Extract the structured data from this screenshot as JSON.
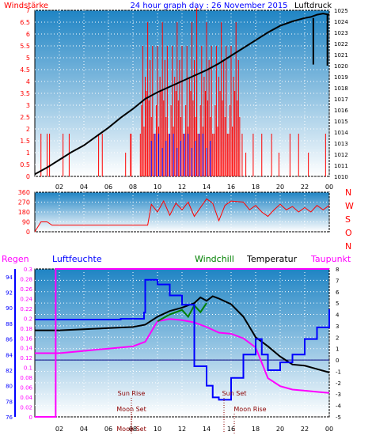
{
  "colors": {
    "bg_top": "#1f84c4",
    "bg_bottom": "#ffffff",
    "red": "#ff0000",
    "blue": "#0000ff",
    "black": "#000000",
    "magenta": "#ff00ff",
    "green": "#008000",
    "darkred": "#8b0000"
  },
  "chart_data": [
    {
      "type": "bar",
      "title": "24 hour graph day : 26 November 2015",
      "left_label": "Windstärke",
      "right_label": "Luftdruck",
      "y_ticks": [
        "0",
        "0.5",
        "1",
        "1.5",
        "2",
        "2.5",
        "3",
        "3.5",
        "4",
        "4.5",
        "5",
        "5.5",
        "6",
        "6.5",
        "7"
      ],
      "y_right_ticks": [
        "1010",
        "1011",
        "1012",
        "1013",
        "1014",
        "1015",
        "1016",
        "1017",
        "1018",
        "1019",
        "1020",
        "1021",
        "1022",
        "1023",
        "1024",
        "1025"
      ],
      "ylim": [
        0,
        7
      ],
      "y_right_lim": [
        1010,
        1025
      ],
      "x_ticks": [
        "02",
        "04",
        "06",
        "08",
        "10",
        "12",
        "14",
        "16",
        "18",
        "20",
        "22",
        "00"
      ],
      "series": [
        {
          "name": "Luftdruck",
          "x": [
            0,
            1,
            2,
            3,
            4,
            5,
            6,
            7,
            8,
            9,
            10,
            11,
            12,
            13,
            14,
            15,
            16,
            17,
            18,
            19,
            20,
            21,
            22,
            22.5,
            23,
            23.5,
            24
          ],
          "values": [
            1010.2,
            1010.8,
            1011.5,
            1012.2,
            1012.8,
            1013.6,
            1014.4,
            1015.3,
            1016.1,
            1017.0,
            1017.6,
            1018.1,
            1018.6,
            1019.1,
            1019.6,
            1020.2,
            1020.9,
            1021.6,
            1022.3,
            1023.0,
            1023.6,
            1024.0,
            1024.3,
            1024.4,
            1024.6,
            1024.7,
            1024.6
          ]
        }
      ]
    },
    {
      "type": "line",
      "right_labels": [
        "N",
        "W",
        "S",
        "O",
        "N"
      ],
      "y_ticks": [
        "0",
        "90",
        "180",
        "270",
        "360"
      ],
      "ylim": [
        0,
        360
      ],
      "series": [
        {
          "name": "Windrichtung",
          "x": [
            0,
            0.5,
            1,
            1.4,
            2,
            4,
            6,
            8,
            9.2,
            9.5,
            10,
            10.5,
            11,
            11.5,
            12,
            12.5,
            13,
            13.5,
            14,
            14.5,
            15,
            15.5,
            16,
            17,
            17.5,
            18,
            18.5,
            19,
            19.5,
            20,
            20.5,
            21,
            21.5,
            22,
            22.5,
            23,
            23.5,
            24
          ],
          "values": [
            0,
            90,
            90,
            60,
            60,
            60,
            60,
            60,
            60,
            250,
            180,
            280,
            150,
            260,
            200,
            270,
            140,
            220,
            300,
            260,
            100,
            240,
            280,
            270,
            200,
            240,
            180,
            140,
            200,
            250,
            200,
            230,
            180,
            220,
            180,
            240,
            200,
            240
          ]
        }
      ]
    },
    {
      "type": "line",
      "legend": [
        "Regen",
        "Luftfeuchte",
        "Windchill",
        "Temperatur",
        "Taupunkt"
      ],
      "annotations": [
        "Sun Rise",
        "Moon Set",
        "Sun Set",
        "Moon Rise",
        "Moon Set"
      ],
      "humidity_ticks": [
        "76",
        "78",
        "80",
        "82",
        "84",
        "86",
        "88",
        "90",
        "92",
        "94"
      ],
      "rain_ticks": [
        "0",
        "0.02",
        "0.04",
        "0.06",
        "0.08",
        "0.1",
        "0.12",
        "0.14",
        "0.16",
        "0.18",
        "0.2",
        "0.22",
        "0.24",
        "0.26",
        "0.28",
        "0.3"
      ],
      "temp_ticks": [
        "-5",
        "-4",
        "-3",
        "-2",
        "-1",
        "0",
        "1",
        "2",
        "3",
        "4",
        "5",
        "6",
        "7",
        "8"
      ],
      "series": [
        {
          "name": "Temperatur",
          "x": [
            0,
            2,
            4,
            6,
            8,
            9,
            10,
            11,
            12,
            13,
            13.5,
            14,
            14.5,
            15,
            16,
            17,
            18,
            19,
            20,
            21,
            22,
            23,
            24
          ],
          "values": [
            2.6,
            2.6,
            2.7,
            2.8,
            2.9,
            3.1,
            3.8,
            4.3,
            4.6,
            5.0,
            5.5,
            5.2,
            5.6,
            5.4,
            4.9,
            3.8,
            2.0,
            1.2,
            0.3,
            -0.4,
            -0.5,
            -0.8,
            -1.1
          ]
        },
        {
          "name": "Taupunkt",
          "x": [
            0,
            2,
            4,
            6,
            8,
            9,
            10,
            11,
            12,
            13,
            14,
            15,
            16,
            17,
            18,
            19,
            20,
            21,
            22,
            23,
            24
          ],
          "values": [
            0.6,
            0.6,
            0.8,
            1.0,
            1.2,
            1.6,
            3.4,
            3.6,
            3.5,
            3.3,
            2.9,
            2.4,
            2.3,
            1.9,
            1.1,
            -1.6,
            -2.3,
            -2.6,
            -2.7,
            -2.8,
            -2.9
          ]
        },
        {
          "name": "Windchill",
          "x": [
            10,
            11,
            12,
            12.5,
            13,
            13.5,
            14
          ],
          "values": [
            3.4,
            4.0,
            4.4,
            3.8,
            4.8,
            4.2,
            5.0
          ]
        },
        {
          "name": "Luftfeuchte",
          "x": [
            0,
            2,
            4,
            6,
            7,
            8.9,
            9,
            10,
            11,
            12,
            13,
            14,
            14.5,
            15,
            16,
            17,
            18,
            18.5,
            19,
            20,
            21,
            22,
            23,
            24
          ],
          "values": [
            88.5,
            88.5,
            88.5,
            88.5,
            88.6,
            89.4,
            93.6,
            93.0,
            91.6,
            90.4,
            82.5,
            80.0,
            78.5,
            78.2,
            81.0,
            84.0,
            86.0,
            84.0,
            82.0,
            83.0,
            84.0,
            86.0,
            87.5,
            89.8
          ]
        },
        {
          "name": "Regen",
          "x": [
            0,
            1.7,
            1.7,
            24
          ],
          "values": [
            0,
            0,
            0.3,
            0.3
          ]
        }
      ]
    }
  ]
}
